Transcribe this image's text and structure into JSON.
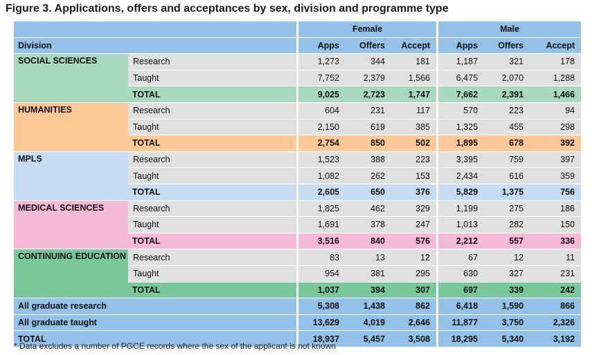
{
  "title": "Figure 3. Applications, offers and acceptances by sex, division and programme type",
  "header": {
    "group_female": "Female",
    "group_male": "Male",
    "division": "Division",
    "apps": "Apps",
    "offers": "Offers",
    "accept": "Accept"
  },
  "colors": {
    "header": "#93c1e8",
    "data_row": "#e0e0e0"
  },
  "divisions": [
    {
      "name": "SOCIAL SCIENCES",
      "color": "#a8d8c0",
      "rows": [
        {
          "type": "Research",
          "f_apps": "1,273",
          "f_offers": "344",
          "f_accept": "181",
          "m_apps": "1,187",
          "m_offers": "321",
          "m_accept": "178"
        },
        {
          "type": "Taught",
          "f_apps": "7,752",
          "f_offers": "2,379",
          "f_accept": "1,566",
          "m_apps": "6,475",
          "m_offers": "2,070",
          "m_accept": "1,288"
        },
        {
          "type": "TOTAL",
          "f_apps": "9,025",
          "f_offers": "2,723",
          "f_accept": "1,747",
          "m_apps": "7,662",
          "m_offers": "2,391",
          "m_accept": "1,466"
        }
      ]
    },
    {
      "name": "HUMANITIES",
      "color": "#fcc896",
      "rows": [
        {
          "type": "Research",
          "f_apps": "604",
          "f_offers": "231",
          "f_accept": "117",
          "m_apps": "570",
          "m_offers": "223",
          "m_accept": "94"
        },
        {
          "type": "Taught",
          "f_apps": "2,150",
          "f_offers": "619",
          "f_accept": "385",
          "m_apps": "1,325",
          "m_offers": "455",
          "m_accept": "298"
        },
        {
          "type": "TOTAL",
          "f_apps": "2,754",
          "f_offers": "850",
          "f_accept": "502",
          "m_apps": "1,895",
          "m_offers": "678",
          "m_accept": "392"
        }
      ]
    },
    {
      "name": "MPLS",
      "color": "#c6dcf2",
      "rows": [
        {
          "type": "Research",
          "f_apps": "1,523",
          "f_offers": "388",
          "f_accept": "223",
          "m_apps": "3,395",
          "m_offers": "759",
          "m_accept": "397"
        },
        {
          "type": "Taught",
          "f_apps": "1,082",
          "f_offers": "262",
          "f_accept": "153",
          "m_apps": "2,434",
          "m_offers": "616",
          "m_accept": "359"
        },
        {
          "type": "TOTAL",
          "f_apps": "2,605",
          "f_offers": "650",
          "f_accept": "376",
          "m_apps": "5,829",
          "m_offers": "1,375",
          "m_accept": "756"
        }
      ]
    },
    {
      "name": "MEDICAL SCIENCES",
      "color": "#f4bad6",
      "rows": [
        {
          "type": "Research",
          "f_apps": "1,825",
          "f_offers": "462",
          "f_accept": "329",
          "m_apps": "1,199",
          "m_offers": "275",
          "m_accept": "186"
        },
        {
          "type": "Taught",
          "f_apps": "1,691",
          "f_offers": "378",
          "f_accept": "247",
          "m_apps": "1,013",
          "m_offers": "282",
          "m_accept": "150"
        },
        {
          "type": "TOTAL",
          "f_apps": "3,516",
          "f_offers": "840",
          "f_accept": "576",
          "m_apps": "2,212",
          "m_offers": "557",
          "m_accept": "336"
        }
      ]
    },
    {
      "name": "CONTINUING EDUCATION",
      "color": "#79c89a",
      "rows": [
        {
          "type": "Research",
          "f_apps": "83",
          "f_offers": "13",
          "f_accept": "12",
          "m_apps": "67",
          "m_offers": "12",
          "m_accept": "11"
        },
        {
          "type": "Taught",
          "f_apps": "954",
          "f_offers": "381",
          "f_accept": "295",
          "m_apps": "630",
          "m_offers": "327",
          "m_accept": "231"
        },
        {
          "type": "TOTAL",
          "f_apps": "1,037",
          "f_offers": "394",
          "f_accept": "307",
          "m_apps": "697",
          "m_offers": "339",
          "m_accept": "242"
        }
      ]
    }
  ],
  "summary": [
    {
      "label": "All graduate research",
      "f_apps": "5,308",
      "f_offers": "1,438",
      "f_accept": "862",
      "m_apps": "6,418",
      "m_offers": "1,590",
      "m_accept": "866"
    },
    {
      "label": "All graduate taught",
      "f_apps": "13,629",
      "f_offers": "4,019",
      "f_accept": "2,646",
      "m_apps": "11,877",
      "m_offers": "3,750",
      "m_accept": "2,326"
    },
    {
      "label": "TOTAL",
      "f_apps": "18,937",
      "f_offers": "5,457",
      "f_accept": "3,508",
      "m_apps": "18,295",
      "m_offers": "5,340",
      "m_accept": "3,192"
    }
  ],
  "footnote": "* Data excludes a number of PGCE records where the sex of the applicant is not known"
}
